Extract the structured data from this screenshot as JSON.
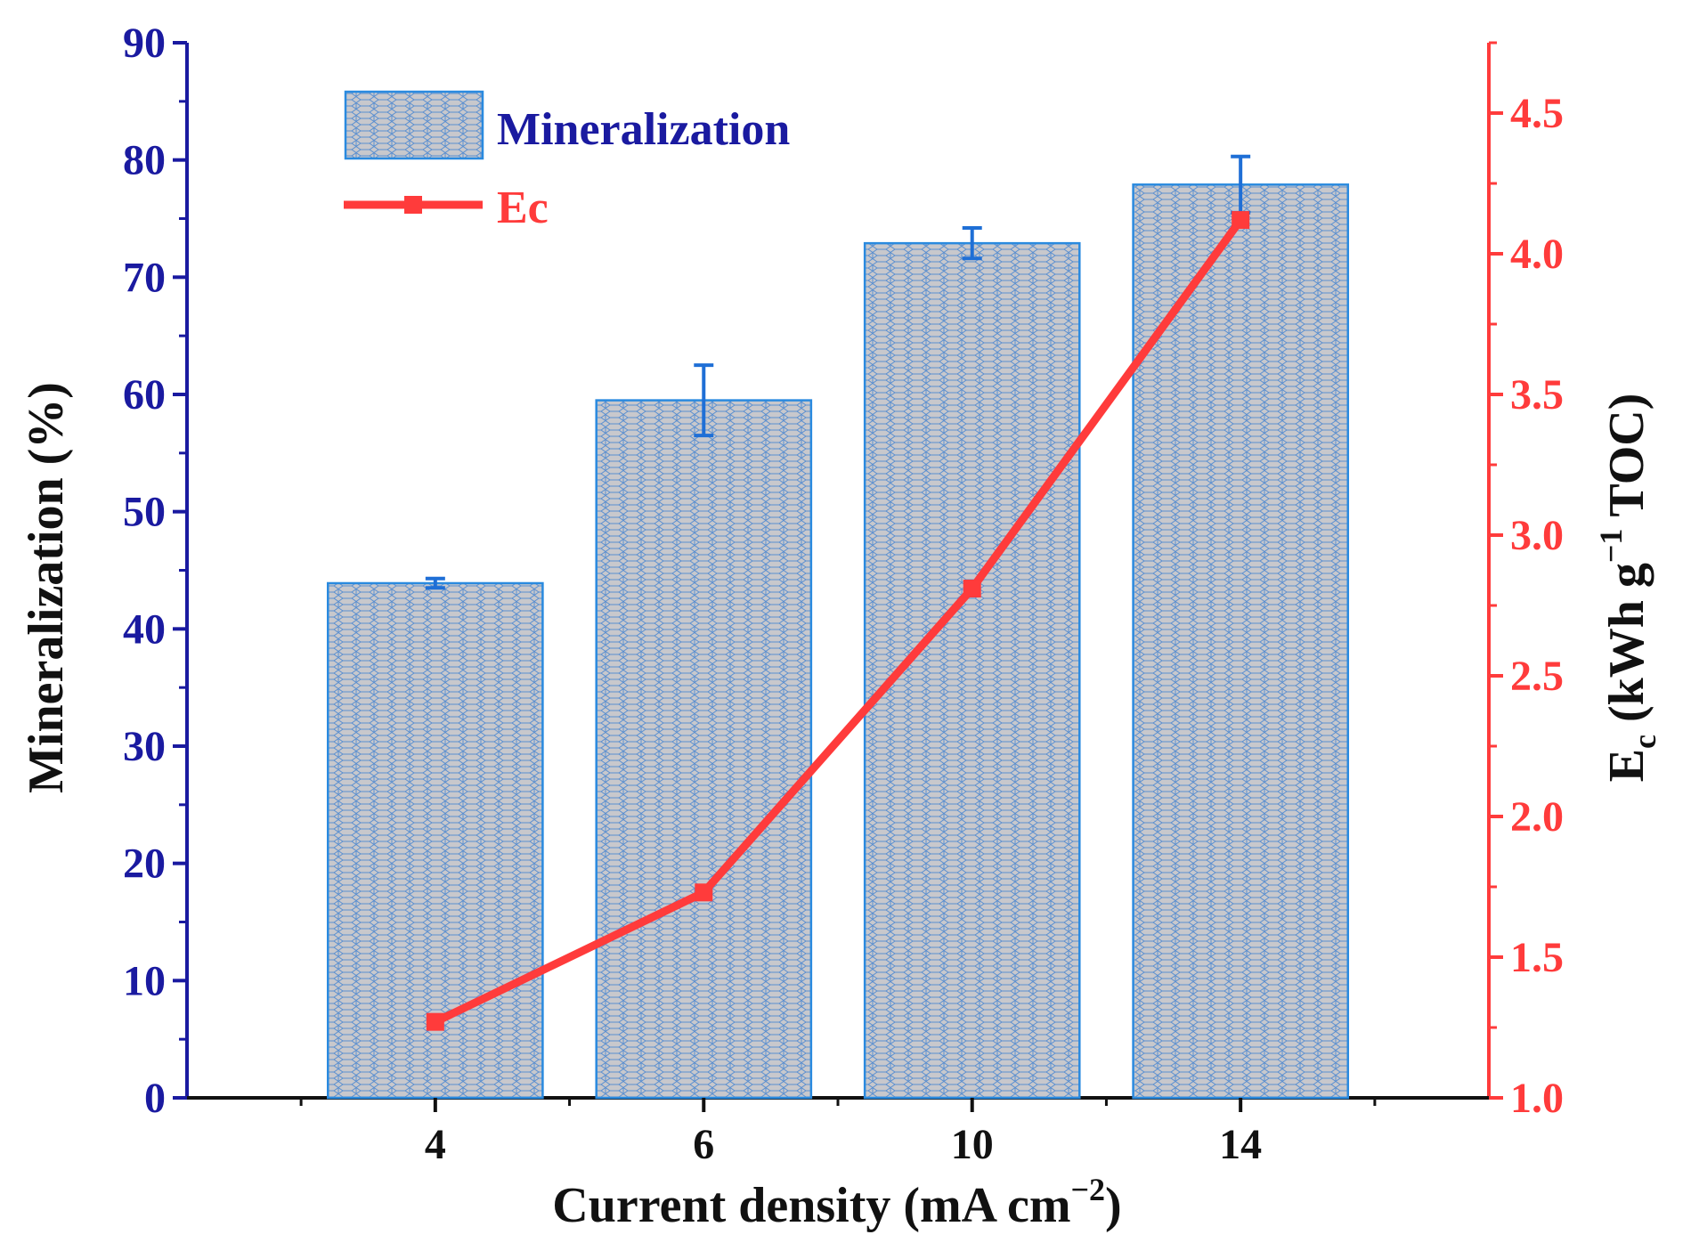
{
  "chart_data": {
    "type": "bar+line",
    "title": "",
    "categories": [
      "4",
      "6",
      "10",
      "14"
    ],
    "xlabel": "Current density (mA cm",
    "xlabel_sup": "−2",
    "xlabel_close": ")",
    "left_axis": {
      "label": "Mineralization (%)",
      "ylim": [
        0,
        90
      ],
      "ticks": [
        "0",
        "10",
        "20",
        "30",
        "40",
        "50",
        "60",
        "70",
        "80",
        "90"
      ],
      "color": "#1a1aa0"
    },
    "right_axis": {
      "label_main": "E",
      "label_sub": "c",
      "label_rest": " (kWh g",
      "label_sup": "−1",
      "label_end": " TOC)",
      "ylim": [
        1.0,
        4.75
      ],
      "ticks": [
        "1.0",
        "1.5",
        "2.0",
        "2.5",
        "3.0",
        "3.5",
        "4.0",
        "4.5"
      ],
      "color": "#ff3b3b"
    },
    "series": [
      {
        "name": "Mineralization",
        "kind": "bar",
        "axis": "left",
        "values": [
          43.9,
          59.5,
          72.9,
          77.9
        ],
        "errors": [
          0.4,
          3.0,
          1.3,
          2.4
        ],
        "fill": "#c8c8cc",
        "edge": "#2a8adf",
        "error_color": "#1f6fd6"
      },
      {
        "name": "Ec",
        "kind": "line",
        "axis": "right",
        "values": [
          1.27,
          1.73,
          2.81,
          4.12
        ],
        "color": "#ff3b3b"
      }
    ],
    "legend": {
      "position": "top-left",
      "items": [
        "Mineralization",
        "Ec"
      ],
      "colors": [
        "#1a1aa0",
        "#ff3b3b"
      ]
    }
  }
}
